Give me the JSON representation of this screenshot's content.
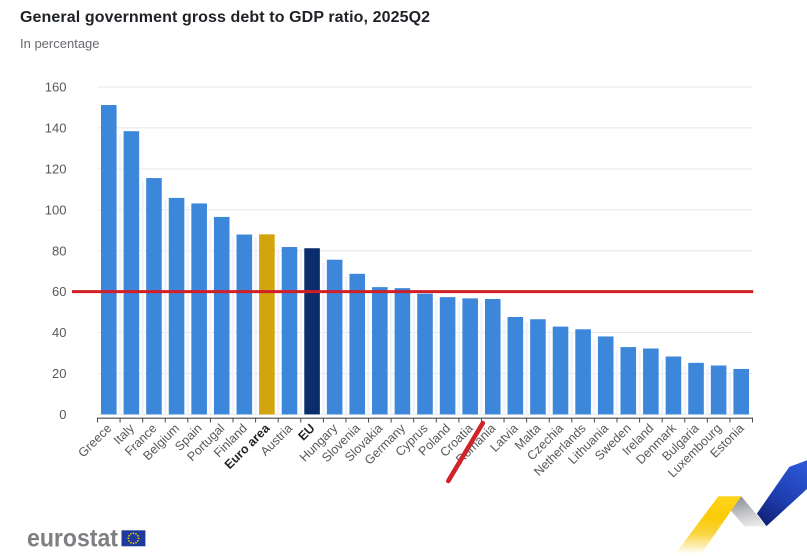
{
  "header": {
    "title": "General government gross debt to GDP ratio, 2025Q2",
    "subtitle": "In percentage"
  },
  "chart_data": {
    "type": "bar",
    "title": "General government gross debt to GDP ratio, 2025Q2",
    "subtitle": "In percentage",
    "xlabel": "",
    "ylabel": "",
    "ylim": [
      0,
      160
    ],
    "ytick_step": 20,
    "grid": true,
    "categories": [
      "Greece",
      "Italy",
      "France",
      "Belgium",
      "Spain",
      "Portugal",
      "Finland",
      "Euro area",
      "Austria",
      "EU",
      "Hungary",
      "Slovenia",
      "Slovakia",
      "Germany",
      "Cyprus",
      "Poland",
      "Croatia",
      "Romania",
      "Latvia",
      "Malta",
      "Czechia",
      "Netherlands",
      "Lithuania",
      "Sweden",
      "Ireland",
      "Denmark",
      "Bulgaria",
      "Luxembourg",
      "Estonia"
    ],
    "values": [
      151.2,
      138.4,
      115.5,
      105.8,
      103.1,
      96.5,
      87.9,
      88.0,
      81.8,
      81.2,
      75.6,
      68.7,
      62.2,
      61.7,
      59.0,
      57.3,
      56.7,
      56.4,
      47.6,
      46.5,
      42.9,
      41.6,
      38.1,
      32.9,
      32.2,
      28.3,
      25.2,
      23.9,
      22.2
    ],
    "bold_categories": [
      "Euro area",
      "EU"
    ],
    "bar_colors": {
      "default": "#3d87db",
      "Euro area": "#d2a40e",
      "EU": "#0c2d6c"
    },
    "reference_line": {
      "value": 60,
      "color": "#d21e27"
    },
    "annotation": {
      "type": "red-stroke",
      "target_category": "Croatia",
      "color": "#d0242b"
    },
    "colors": {
      "gridline": "#e8e8e8",
      "axis_line": "#44474c",
      "tick": "#44474c",
      "axis_label": "#55585c",
      "bold_axis_label": "#222428"
    }
  },
  "footer": {
    "logo_text": "eurostat",
    "flag": {
      "background": "#1e3b9c",
      "star_color": "#ffcc00",
      "star_count": 12
    }
  }
}
